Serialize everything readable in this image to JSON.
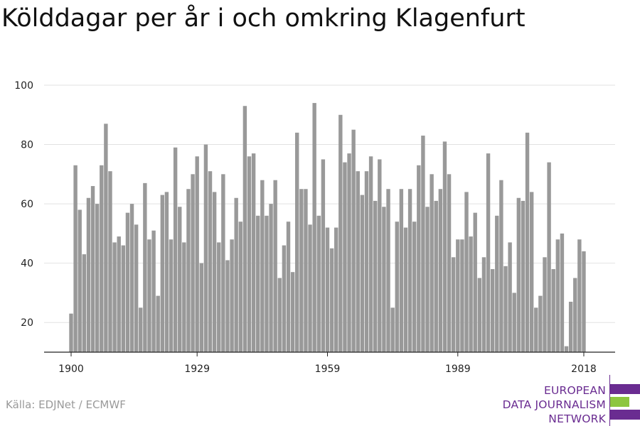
{
  "chart_data": {
    "type": "bar",
    "title": "Kölddagar per år i och omkring Klagenfurt",
    "xlabel": "",
    "ylabel": "",
    "ylim": [
      10,
      100
    ],
    "yticks": [
      20,
      40,
      60,
      80,
      100
    ],
    "xticks": [
      1900,
      1929,
      1959,
      1989,
      2018
    ],
    "grid": true,
    "color": "#999999",
    "x_start": 1900,
    "values": [
      23,
      73,
      58,
      43,
      62,
      66,
      60,
      73,
      87,
      71,
      47,
      49,
      46,
      57,
      60,
      53,
      25,
      67,
      48,
      51,
      29,
      63,
      64,
      48,
      79,
      59,
      47,
      65,
      70,
      76,
      40,
      80,
      71,
      64,
      47,
      70,
      41,
      48,
      62,
      54,
      93,
      76,
      77,
      56,
      68,
      56,
      60,
      68,
      35,
      46,
      54,
      37,
      84,
      65,
      65,
      53,
      94,
      56,
      75,
      52,
      45,
      52,
      90,
      74,
      77,
      85,
      71,
      63,
      71,
      76,
      61,
      75,
      59,
      65,
      25,
      54,
      65,
      52,
      65,
      54,
      73,
      83,
      59,
      70,
      61,
      65,
      81,
      70,
      42,
      48,
      48,
      64,
      49,
      57,
      35,
      42,
      77,
      38,
      56,
      68,
      39,
      47,
      30,
      62,
      61,
      84,
      64,
      25,
      29,
      42,
      74,
      38,
      48,
      50,
      12,
      27,
      35,
      48,
      44
    ]
  },
  "source": "Källa: EDJNet / ECMWF",
  "logo": {
    "line1": "EUROPEAN",
    "line2": "DATA JOURNALISM",
    "line3": "NETWORK",
    "purple": "#6a2c91",
    "green": "#8dc63f"
  }
}
